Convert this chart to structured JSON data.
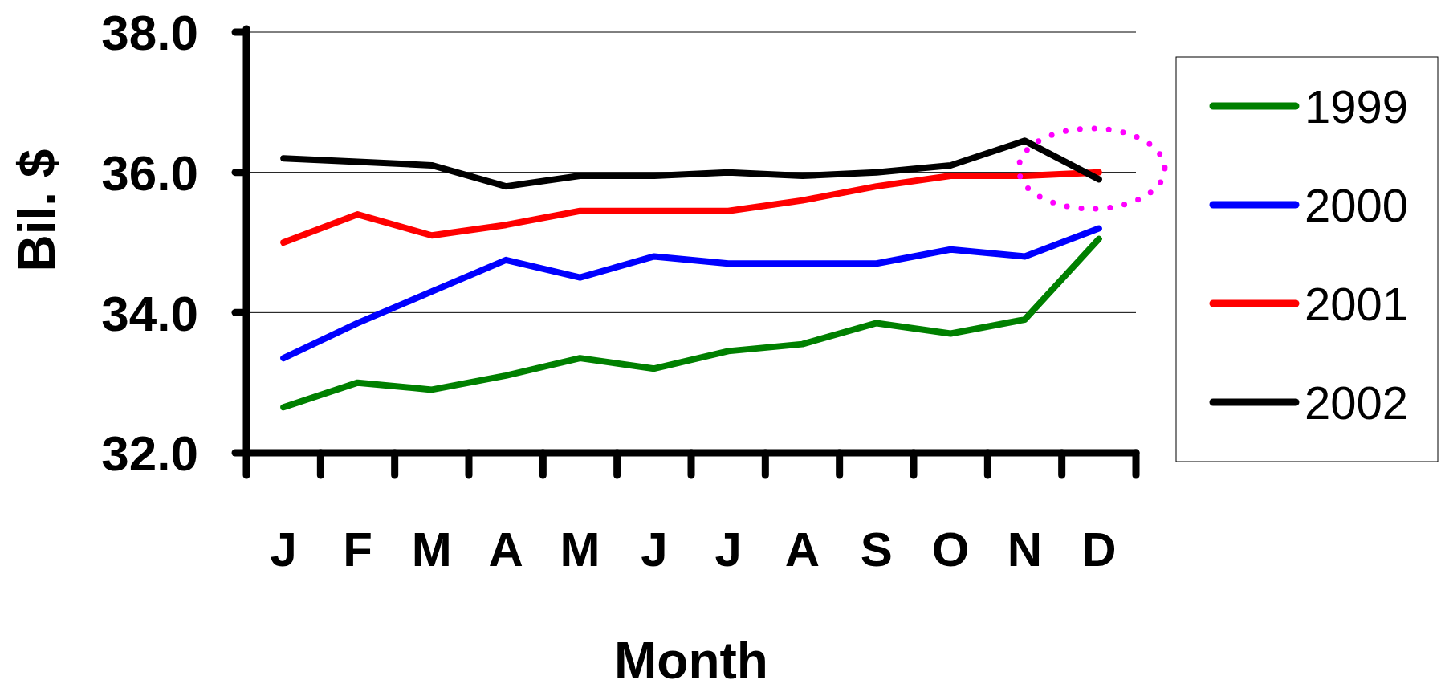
{
  "chart_data": {
    "type": "line",
    "xlabel": "Month",
    "ylabel": "Bil. $",
    "categories": [
      "J",
      "F",
      "M",
      "A",
      "M",
      "J",
      "J",
      "A",
      "S",
      "O",
      "N",
      "D"
    ],
    "series": [
      {
        "name": "1999",
        "color": "#008000",
        "values": [
          32.65,
          33.0,
          32.9,
          33.1,
          33.35,
          33.2,
          33.45,
          33.55,
          33.85,
          33.7,
          33.9,
          35.05
        ]
      },
      {
        "name": "2000",
        "color": "#0000ff",
        "values": [
          33.35,
          33.85,
          34.3,
          34.75,
          34.5,
          34.8,
          34.7,
          34.7,
          34.7,
          34.9,
          34.8,
          35.2
        ]
      },
      {
        "name": "2001",
        "color": "#ff0000",
        "values": [
          35.0,
          35.4,
          35.1,
          35.25,
          35.45,
          35.45,
          35.45,
          35.6,
          35.8,
          35.95,
          35.95,
          36.0
        ]
      },
      {
        "name": "2002",
        "color": "#000000",
        "values": [
          36.2,
          36.15,
          36.1,
          35.8,
          35.95,
          35.95,
          36.0,
          35.95,
          36.0,
          36.1,
          36.45,
          35.9
        ]
      }
    ],
    "ylim": [
      32,
      38
    ],
    "yticks": [
      {
        "value": 32,
        "label": "32.0"
      },
      {
        "value": 34,
        "label": "34.0"
      },
      {
        "value": 36,
        "label": "36.0"
      },
      {
        "value": 38,
        "label": "38.0"
      }
    ],
    "grid": "y",
    "legend": "right",
    "marker": "none",
    "line_style": "solid"
  }
}
